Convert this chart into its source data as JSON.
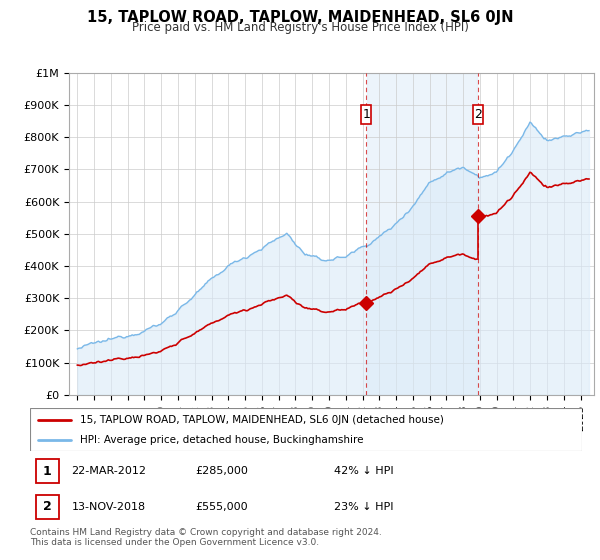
{
  "title": "15, TAPLOW ROAD, TAPLOW, MAIDENHEAD, SL6 0JN",
  "subtitle": "Price paid vs. HM Land Registry's House Price Index (HPI)",
  "ylim": [
    0,
    1000000
  ],
  "yticks": [
    0,
    100000,
    200000,
    300000,
    400000,
    500000,
    600000,
    700000,
    800000,
    900000,
    1000000
  ],
  "ytick_labels": [
    "£0",
    "£100K",
    "£200K",
    "£300K",
    "£400K",
    "£500K",
    "£600K",
    "£700K",
    "£800K",
    "£900K",
    "£1M"
  ],
  "hpi_color": "#7ab8e8",
  "hpi_fill_color": "#daeaf8",
  "price_color": "#cc0000",
  "sale1_x": 2012.22,
  "sale1_price": 285000,
  "sale2_x": 2018.87,
  "sale2_price": 555000,
  "legend_line1": "15, TAPLOW ROAD, TAPLOW, MAIDENHEAD, SL6 0JN (detached house)",
  "legend_line2": "HPI: Average price, detached house, Buckinghamshire",
  "note1_label": "1",
  "note1_date": "22-MAR-2012",
  "note1_price": "£285,000",
  "note1_pct": "42% ↓ HPI",
  "note2_label": "2",
  "note2_date": "13-NOV-2018",
  "note2_price": "£555,000",
  "note2_pct": "23% ↓ HPI",
  "footer": "Contains HM Land Registry data © Crown copyright and database right 2024.\nThis data is licensed under the Open Government Licence v3.0.",
  "bg_color": "#ffffff",
  "grid_color": "#cccccc"
}
